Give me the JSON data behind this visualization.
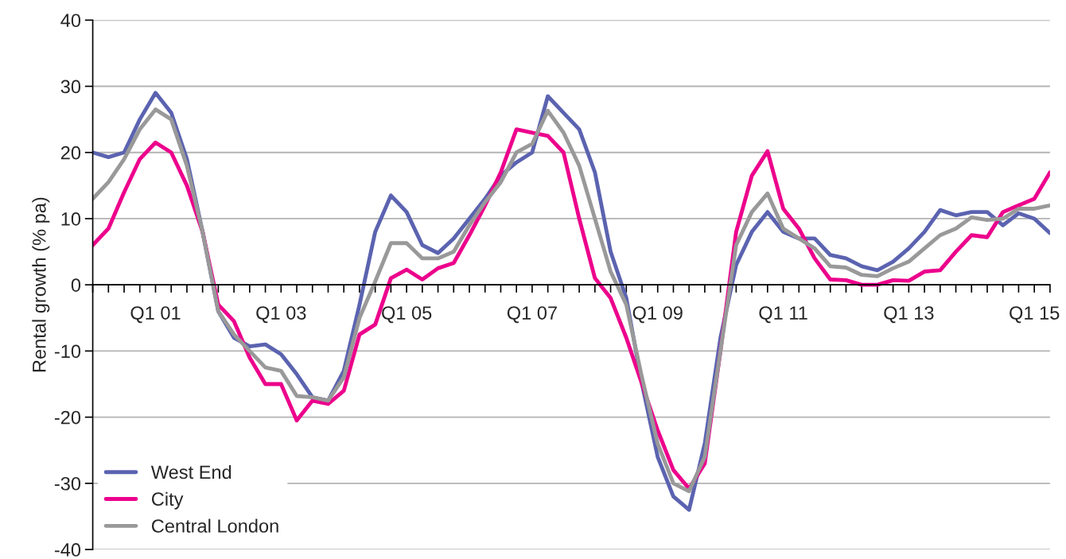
{
  "chart_data": {
    "type": "line",
    "ylabel": "Rental growth (% pa)",
    "categories": [
      null,
      null,
      null,
      null,
      "Q1 01",
      null,
      null,
      null,
      null,
      null,
      null,
      null,
      "Q1 03",
      null,
      null,
      null,
      null,
      null,
      null,
      null,
      "Q1 05",
      null,
      null,
      null,
      null,
      null,
      null,
      null,
      "Q1 07",
      null,
      null,
      null,
      null,
      null,
      null,
      null,
      "Q1 09",
      null,
      null,
      null,
      null,
      null,
      null,
      null,
      "Q1 11",
      null,
      null,
      null,
      null,
      null,
      null,
      null,
      "Q1 13",
      null,
      null,
      null,
      null,
      null,
      null,
      null,
      "Q1 15",
      null
    ],
    "series": [
      {
        "name": "West End",
        "color": "#5b63b0",
        "values": [
          20,
          19.3,
          20,
          25,
          29,
          26,
          19,
          8,
          -4,
          -8,
          -9.3,
          -9,
          -10.5,
          -13.5,
          -17,
          -17.5,
          -13,
          -3,
          8,
          13.5,
          11,
          6,
          4.8,
          7,
          10,
          13,
          16.5,
          18.5,
          20,
          28.5,
          26,
          23.5,
          17,
          5,
          -2,
          -15,
          -26,
          -32,
          -34,
          -24,
          -8,
          3,
          8,
          11,
          8,
          7,
          7,
          4.5,
          4,
          2.8,
          2.2,
          3.5,
          5.5,
          8,
          11.3,
          10.5,
          11,
          11,
          9,
          10.8,
          10,
          7.8
        ]
      },
      {
        "name": "City",
        "color": "#ec008c",
        "values": [
          6,
          8.5,
          14,
          19,
          21.5,
          20,
          15,
          8,
          -3,
          -5.5,
          -11,
          -15,
          -15,
          -20.5,
          -17.5,
          -18,
          -16,
          -7.5,
          -6,
          1,
          2.3,
          0.8,
          2.5,
          3.3,
          7.5,
          12,
          17,
          23.5,
          23,
          22.5,
          20,
          10,
          1,
          -2,
          -8,
          -15,
          -22,
          -28,
          -30.8,
          -27,
          -10,
          8,
          16.5,
          20.2,
          11.5,
          8.5,
          4,
          0.8,
          0.7,
          0,
          0,
          0.7,
          0.6,
          2,
          2.2,
          5,
          7.5,
          7.2,
          11,
          12,
          13,
          17
        ]
      },
      {
        "name": "Central London",
        "color": "#999999",
        "values": [
          13,
          15.5,
          19,
          23.5,
          26.5,
          25,
          18,
          8,
          -4,
          -7.5,
          -10,
          -12.5,
          -13,
          -16.8,
          -17,
          -17.5,
          -14,
          -5,
          0.5,
          6.3,
          6.3,
          4,
          4,
          5,
          9,
          12.5,
          15.5,
          20,
          21.3,
          26.3,
          23,
          18,
          10,
          2,
          -3,
          -14,
          -24,
          -30,
          -31.2,
          -26,
          -10,
          6,
          11,
          13.8,
          8.5,
          7,
          5.5,
          2.8,
          2.6,
          1.5,
          1.3,
          2.5,
          3.5,
          5.5,
          7.5,
          8.5,
          10.2,
          9.8,
          10,
          11.5,
          11.5,
          12
        ]
      }
    ],
    "ylim": [
      -40,
      40
    ],
    "yticks": [
      -40,
      -30,
      -20,
      -10,
      0,
      10,
      20,
      30,
      40
    ],
    "grid": "y",
    "legend": "bottom left",
    "marker": "none",
    "line_style": "solid"
  }
}
